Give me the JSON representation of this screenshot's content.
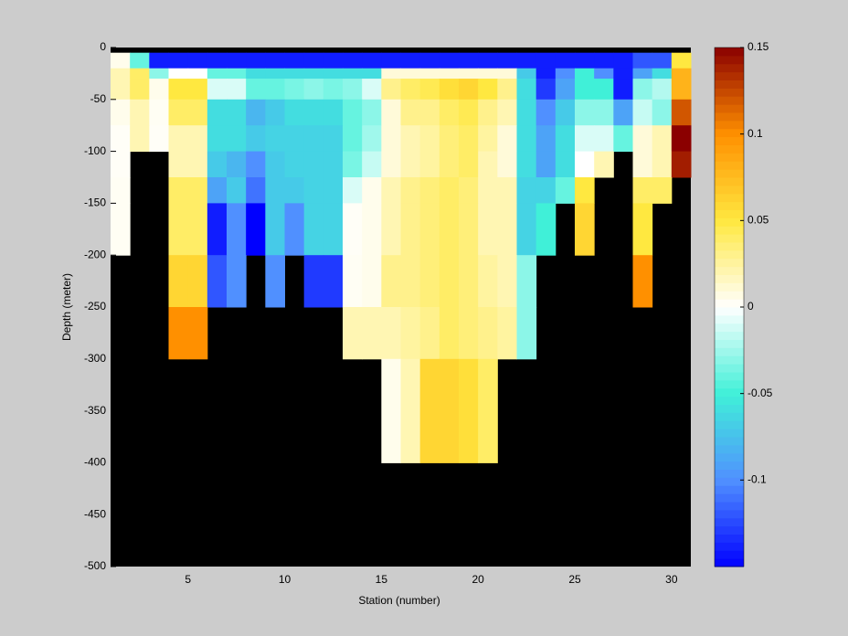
{
  "chart_data": {
    "type": "heatmap",
    "xlabel": "Station (number)",
    "ylabel": "Depth (meter)",
    "x": [
      1,
      2,
      3,
      4,
      5,
      6,
      7,
      8,
      9,
      10,
      11,
      12,
      13,
      14,
      15,
      16,
      17,
      18,
      19,
      20,
      21,
      22,
      23,
      24,
      25,
      26,
      27,
      28,
      29,
      30,
      31
    ],
    "y": [
      0,
      -5,
      -20,
      -30,
      -50,
      -75,
      -100,
      -125,
      -150,
      -200,
      -250,
      -300,
      -400,
      -500
    ],
    "xlim": [
      1,
      31
    ],
    "ylim": [
      -500,
      0
    ],
    "xticks": [
      5,
      10,
      15,
      20,
      25,
      30
    ],
    "yticks": [
      0,
      -50,
      -100,
      -150,
      -200,
      -250,
      -300,
      -350,
      -400,
      -450,
      -500
    ],
    "clim": [
      -0.15,
      0.15
    ],
    "cticks": [
      0.15,
      0.1,
      0.05,
      0,
      -0.05,
      -0.1
    ],
    "colormap": [
      "#0000ff",
      "#5090ff",
      "#40f0d8",
      "#ffffff",
      "#ffe840",
      "#ff9000",
      "#8b0000"
    ],
    "nan_color": "#000000",
    "values": [
      [
        null,
        null,
        null,
        null,
        null,
        null,
        null,
        null,
        null,
        null,
        null,
        null,
        null,
        null,
        null,
        null,
        null,
        null,
        null,
        null,
        null,
        null,
        null,
        null,
        null,
        null,
        null,
        null,
        null,
        null
      ],
      [
        0.005,
        -0.04,
        -0.14,
        -0.14,
        -0.14,
        -0.14,
        -0.14,
        -0.14,
        -0.14,
        -0.14,
        -0.14,
        -0.14,
        -0.14,
        -0.14,
        -0.14,
        -0.14,
        -0.14,
        -0.14,
        -0.14,
        -0.14,
        -0.14,
        -0.14,
        -0.14,
        -0.14,
        -0.14,
        -0.14,
        -0.14,
        -0.12,
        -0.12,
        0.05
      ],
      [
        0.02,
        0.04,
        -0.03,
        0,
        0,
        -0.04,
        -0.04,
        -0.06,
        -0.06,
        -0.06,
        -0.06,
        -0.06,
        -0.06,
        -0.06,
        0.01,
        0.01,
        0.01,
        0.01,
        0.01,
        0.01,
        0.01,
        -0.07,
        -0.14,
        -0.1,
        -0.05,
        -0.1,
        -0.14,
        -0.09,
        -0.06,
        0.08
      ],
      [
        0.02,
        0.04,
        0.005,
        0.05,
        0.05,
        -0.01,
        -0.01,
        -0.04,
        -0.04,
        -0.035,
        -0.03,
        -0.035,
        -0.03,
        -0.01,
        0.03,
        0.04,
        0.045,
        0.055,
        0.06,
        0.05,
        0.03,
        -0.06,
        -0.13,
        -0.09,
        -0.05,
        -0.05,
        -0.14,
        -0.03,
        -0.02,
        0.08
      ],
      [
        0.005,
        0.02,
        0.003,
        0.04,
        0.04,
        -0.06,
        -0.06,
        -0.08,
        -0.07,
        -0.06,
        -0.06,
        -0.06,
        -0.04,
        -0.03,
        0.01,
        0.03,
        0.03,
        0.04,
        0.045,
        0.03,
        0.02,
        -0.06,
        -0.1,
        -0.07,
        -0.03,
        -0.03,
        -0.09,
        -0.015,
        -0.03,
        0.12
      ],
      [
        0.002,
        0.02,
        0.002,
        0.02,
        0.02,
        -0.06,
        -0.06,
        -0.07,
        -0.065,
        -0.065,
        -0.065,
        -0.065,
        -0.04,
        -0.025,
        0.01,
        0.02,
        0.025,
        0.035,
        0.04,
        0.025,
        0.01,
        -0.06,
        -0.09,
        -0.06,
        -0.01,
        -0.01,
        -0.04,
        0.01,
        0.02,
        0.15
      ],
      [
        0.002,
        null,
        null,
        0.02,
        0.02,
        -0.07,
        -0.08,
        -0.1,
        -0.07,
        -0.065,
        -0.065,
        -0.065,
        -0.035,
        -0.015,
        0.01,
        0.02,
        0.025,
        0.035,
        0.04,
        0.02,
        0.01,
        -0.06,
        -0.09,
        -0.06,
        0,
        0.02,
        null,
        0.01,
        0.02,
        0.14
      ],
      [
        0.003,
        null,
        null,
        0.04,
        0.04,
        -0.09,
        -0.07,
        -0.11,
        -0.07,
        -0.07,
        -0.065,
        -0.065,
        -0.01,
        0.005,
        0.02,
        0.03,
        0.035,
        0.04,
        0.035,
        0.02,
        0.02,
        -0.065,
        -0.065,
        -0.04,
        0.05,
        null,
        null,
        0.04,
        0.04,
        null
      ],
      [
        0.003,
        null,
        null,
        0.04,
        0.04,
        -0.14,
        -0.1,
        -0.15,
        -0.07,
        -0.1,
        -0.065,
        -0.065,
        0.002,
        0.005,
        0.02,
        0.03,
        0.035,
        0.04,
        0.035,
        0.02,
        0.02,
        -0.065,
        -0.05,
        null,
        0.06,
        null,
        null,
        0.05,
        null,
        null
      ],
      [
        null,
        null,
        null,
        0.06,
        0.06,
        -0.12,
        -0.1,
        null,
        -0.1,
        null,
        -0.13,
        -0.13,
        0.003,
        0.005,
        0.03,
        0.03,
        0.035,
        0.04,
        0.035,
        0.025,
        0.02,
        -0.03,
        null,
        null,
        null,
        null,
        null,
        0.1,
        null,
        null
      ],
      [
        null,
        null,
        null,
        0.1,
        0.1,
        null,
        null,
        null,
        null,
        null,
        null,
        null,
        0.02,
        0.02,
        0.02,
        0.025,
        0.03,
        0.04,
        0.035,
        0.03,
        0.025,
        -0.03,
        null,
        null,
        null,
        null,
        null,
        null,
        null,
        null
      ],
      [
        null,
        null,
        null,
        null,
        null,
        null,
        null,
        null,
        null,
        null,
        null,
        null,
        null,
        null,
        0.005,
        0.02,
        0.06,
        0.06,
        0.055,
        0.04,
        null,
        null,
        null,
        null,
        null,
        null,
        null,
        null,
        null,
        null
      ],
      [
        null,
        null,
        null,
        null,
        null,
        null,
        null,
        null,
        null,
        null,
        null,
        null,
        null,
        null,
        null,
        null,
        null,
        null,
        null,
        null,
        null,
        null,
        null,
        null,
        null,
        null,
        null,
        null,
        null,
        null
      ]
    ]
  }
}
